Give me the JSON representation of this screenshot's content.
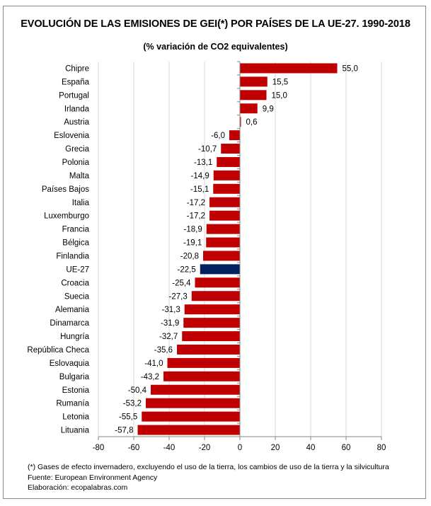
{
  "chart_data": {
    "type": "bar",
    "orientation": "horizontal",
    "title": "EVOLUCIÓN DE LAS EMISIONES DE GEI(*) POR PAÍSES DE LA UE-27. 1990-2018",
    "subtitle": "(% variación de CO2 equivalentes)",
    "xlabel": "",
    "ylabel": "",
    "xlim": [
      -80,
      80
    ],
    "xticks": [
      -80,
      -60,
      -40,
      -20,
      0,
      20,
      40,
      60,
      80
    ],
    "grid": true,
    "legend": "none",
    "categories": [
      "Chipre",
      "España",
      "Portugal",
      "Irlanda",
      "Austria",
      "Eslovenia",
      "Grecia",
      "Polonia",
      "Malta",
      "Países Bajos",
      "Italia",
      "Luxemburgo",
      "Francia",
      "Bélgica",
      "Finlandia",
      "UE-27",
      "Croacia",
      "Suecia",
      "Alemania",
      "Dinamarca",
      "Hungría",
      "República Checa",
      "Eslovaquia",
      "Bulgaria",
      "Estonia",
      "Rumanía",
      "Letonia",
      "Lituania"
    ],
    "values": [
      55.0,
      15.5,
      15.0,
      9.9,
      0.6,
      -6.0,
      -10.7,
      -13.1,
      -14.9,
      -15.1,
      -17.2,
      -17.2,
      -18.9,
      -19.1,
      -20.8,
      -22.5,
      -25.4,
      -27.3,
      -31.3,
      -31.9,
      -32.7,
      -35.6,
      -41.0,
      -43.2,
      -50.4,
      -53.2,
      -55.5,
      -57.8
    ],
    "value_labels": [
      "55,0",
      "15,5",
      "15,0",
      "9,9",
      "0,6",
      "-6,0",
      "-10,7",
      "-13,1",
      "-14,9",
      "-15,1",
      "-17,2",
      "-17,2",
      "-18,9",
      "-19,1",
      "-20,8",
      "-22,5",
      "-25,4",
      "-27,3",
      "-31,3",
      "-31,9",
      "-32,7",
      "-35,6",
      "-41,0",
      "-43,2",
      "-50,4",
      "-53,2",
      "-55,5",
      "-57,8"
    ],
    "highlight_category": "UE-27",
    "colors": {
      "bar": "#c00000",
      "highlight": "#002060",
      "grid": "#d9d9d9",
      "axis": "#868686"
    }
  },
  "notes": {
    "footnote": "(*) Gases de efecto invernadero, excluyendo el uso de la tierra, los cambios de uso de la tierra y la silvicultura",
    "source": "Fuente: European Environment Agency",
    "credit": "Elaboración: ecopalabras.com"
  }
}
